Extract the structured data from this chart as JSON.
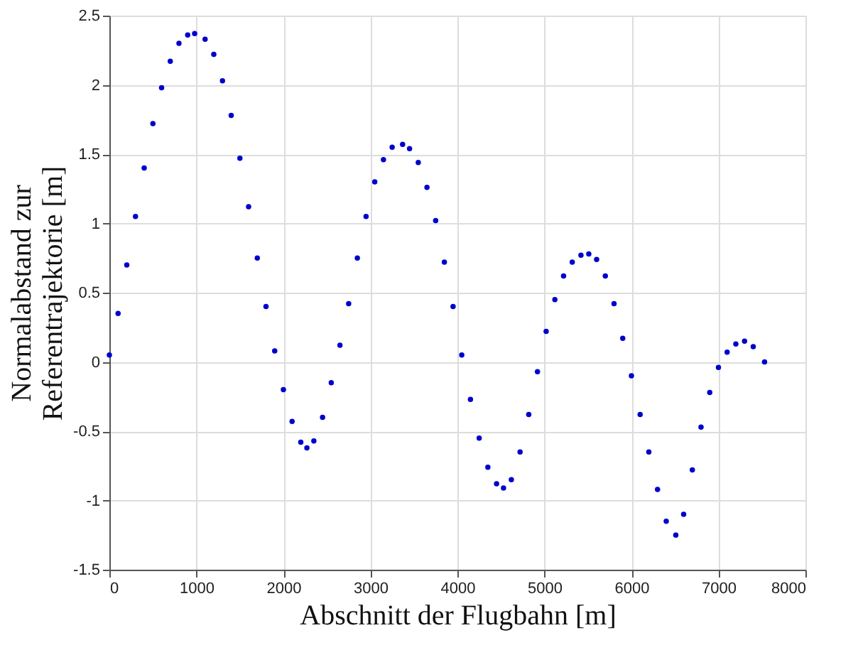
{
  "chart_data": {
    "type": "scatter",
    "xlabel": "Abschnitt der Flugbahn [m]",
    "ylabel": "Normalabstand zur Referentrajektorie [m]",
    "x": [
      0,
      100,
      200,
      300,
      400,
      500,
      600,
      700,
      800,
      900,
      980,
      1100,
      1200,
      1300,
      1400,
      1500,
      1600,
      1700,
      1800,
      1900,
      2000,
      2100,
      2200,
      2270,
      2350,
      2450,
      2550,
      2650,
      2750,
      2850,
      2950,
      3050,
      3150,
      3250,
      3370,
      3450,
      3550,
      3650,
      3750,
      3850,
      3950,
      4050,
      4150,
      4250,
      4350,
      4450,
      4530,
      4620,
      4720,
      4820,
      4920,
      5020,
      5120,
      5220,
      5320,
      5420,
      5510,
      5600,
      5700,
      5800,
      5900,
      6000,
      6100,
      6200,
      6300,
      6400,
      6510,
      6600,
      6700,
      6800,
      6900,
      7000,
      7100,
      7200,
      7300,
      7400,
      7530
    ],
    "series": [
      {
        "color": "#0000cc",
        "values": [
          0.05,
          0.35,
          0.7,
          1.05,
          1.4,
          1.72,
          1.98,
          2.17,
          2.3,
          2.36,
          2.37,
          2.33,
          2.22,
          2.03,
          1.78,
          1.47,
          1.12,
          0.75,
          0.4,
          0.08,
          -0.2,
          -0.43,
          -0.58,
          -0.62,
          -0.57,
          -0.4,
          -0.15,
          0.12,
          0.42,
          0.75,
          1.05,
          1.3,
          1.46,
          1.55,
          1.57,
          1.54,
          1.44,
          1.26,
          1.02,
          0.72,
          0.4,
          0.05,
          -0.27,
          -0.55,
          -0.76,
          -0.88,
          -0.91,
          -0.85,
          -0.65,
          -0.38,
          -0.07,
          0.22,
          0.45,
          0.62,
          0.72,
          0.77,
          0.78,
          0.74,
          0.62,
          0.42,
          0.17,
          -0.1,
          -0.38,
          -0.65,
          -0.92,
          -1.15,
          -1.25,
          -1.1,
          -0.78,
          -0.47,
          -0.22,
          -0.04,
          0.07,
          0.13,
          0.15,
          0.11,
          0.0
        ]
      }
    ],
    "xlim": [
      0,
      8000
    ],
    "xticks": [
      0,
      1000,
      2000,
      3000,
      4000,
      5000,
      6000,
      7000,
      8000
    ],
    "ylim": [
      -1.5,
      2.5
    ],
    "yticks": [
      -1.5,
      -1,
      -0.5,
      0,
      0.5,
      1,
      1.5,
      2,
      2.5
    ],
    "grid": true,
    "marker": "circle"
  }
}
